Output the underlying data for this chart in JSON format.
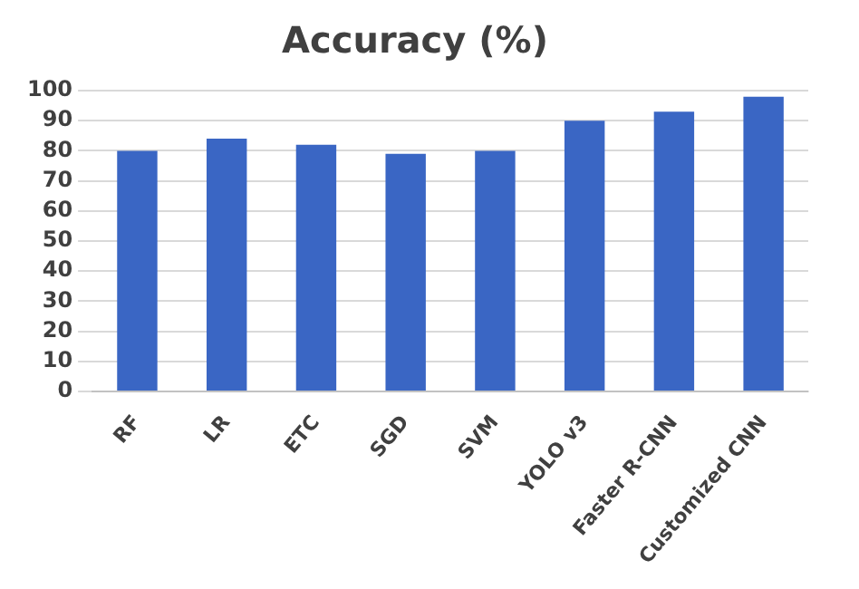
{
  "chart_data": {
    "type": "bar",
    "title": "Accuracy (%)",
    "categories": [
      "RF",
      "LR",
      "ETC",
      "SGD",
      "SVM",
      "YOLO v3",
      "Faster R-CNN",
      "Customized CNN"
    ],
    "values": [
      80,
      84,
      82,
      79,
      80,
      90,
      93,
      98
    ],
    "color": "#3a66c4",
    "ylim": [
      0,
      100
    ],
    "yticks": [
      0,
      10,
      20,
      30,
      40,
      50,
      60,
      70,
      80,
      90,
      100
    ],
    "grid": "y"
  }
}
